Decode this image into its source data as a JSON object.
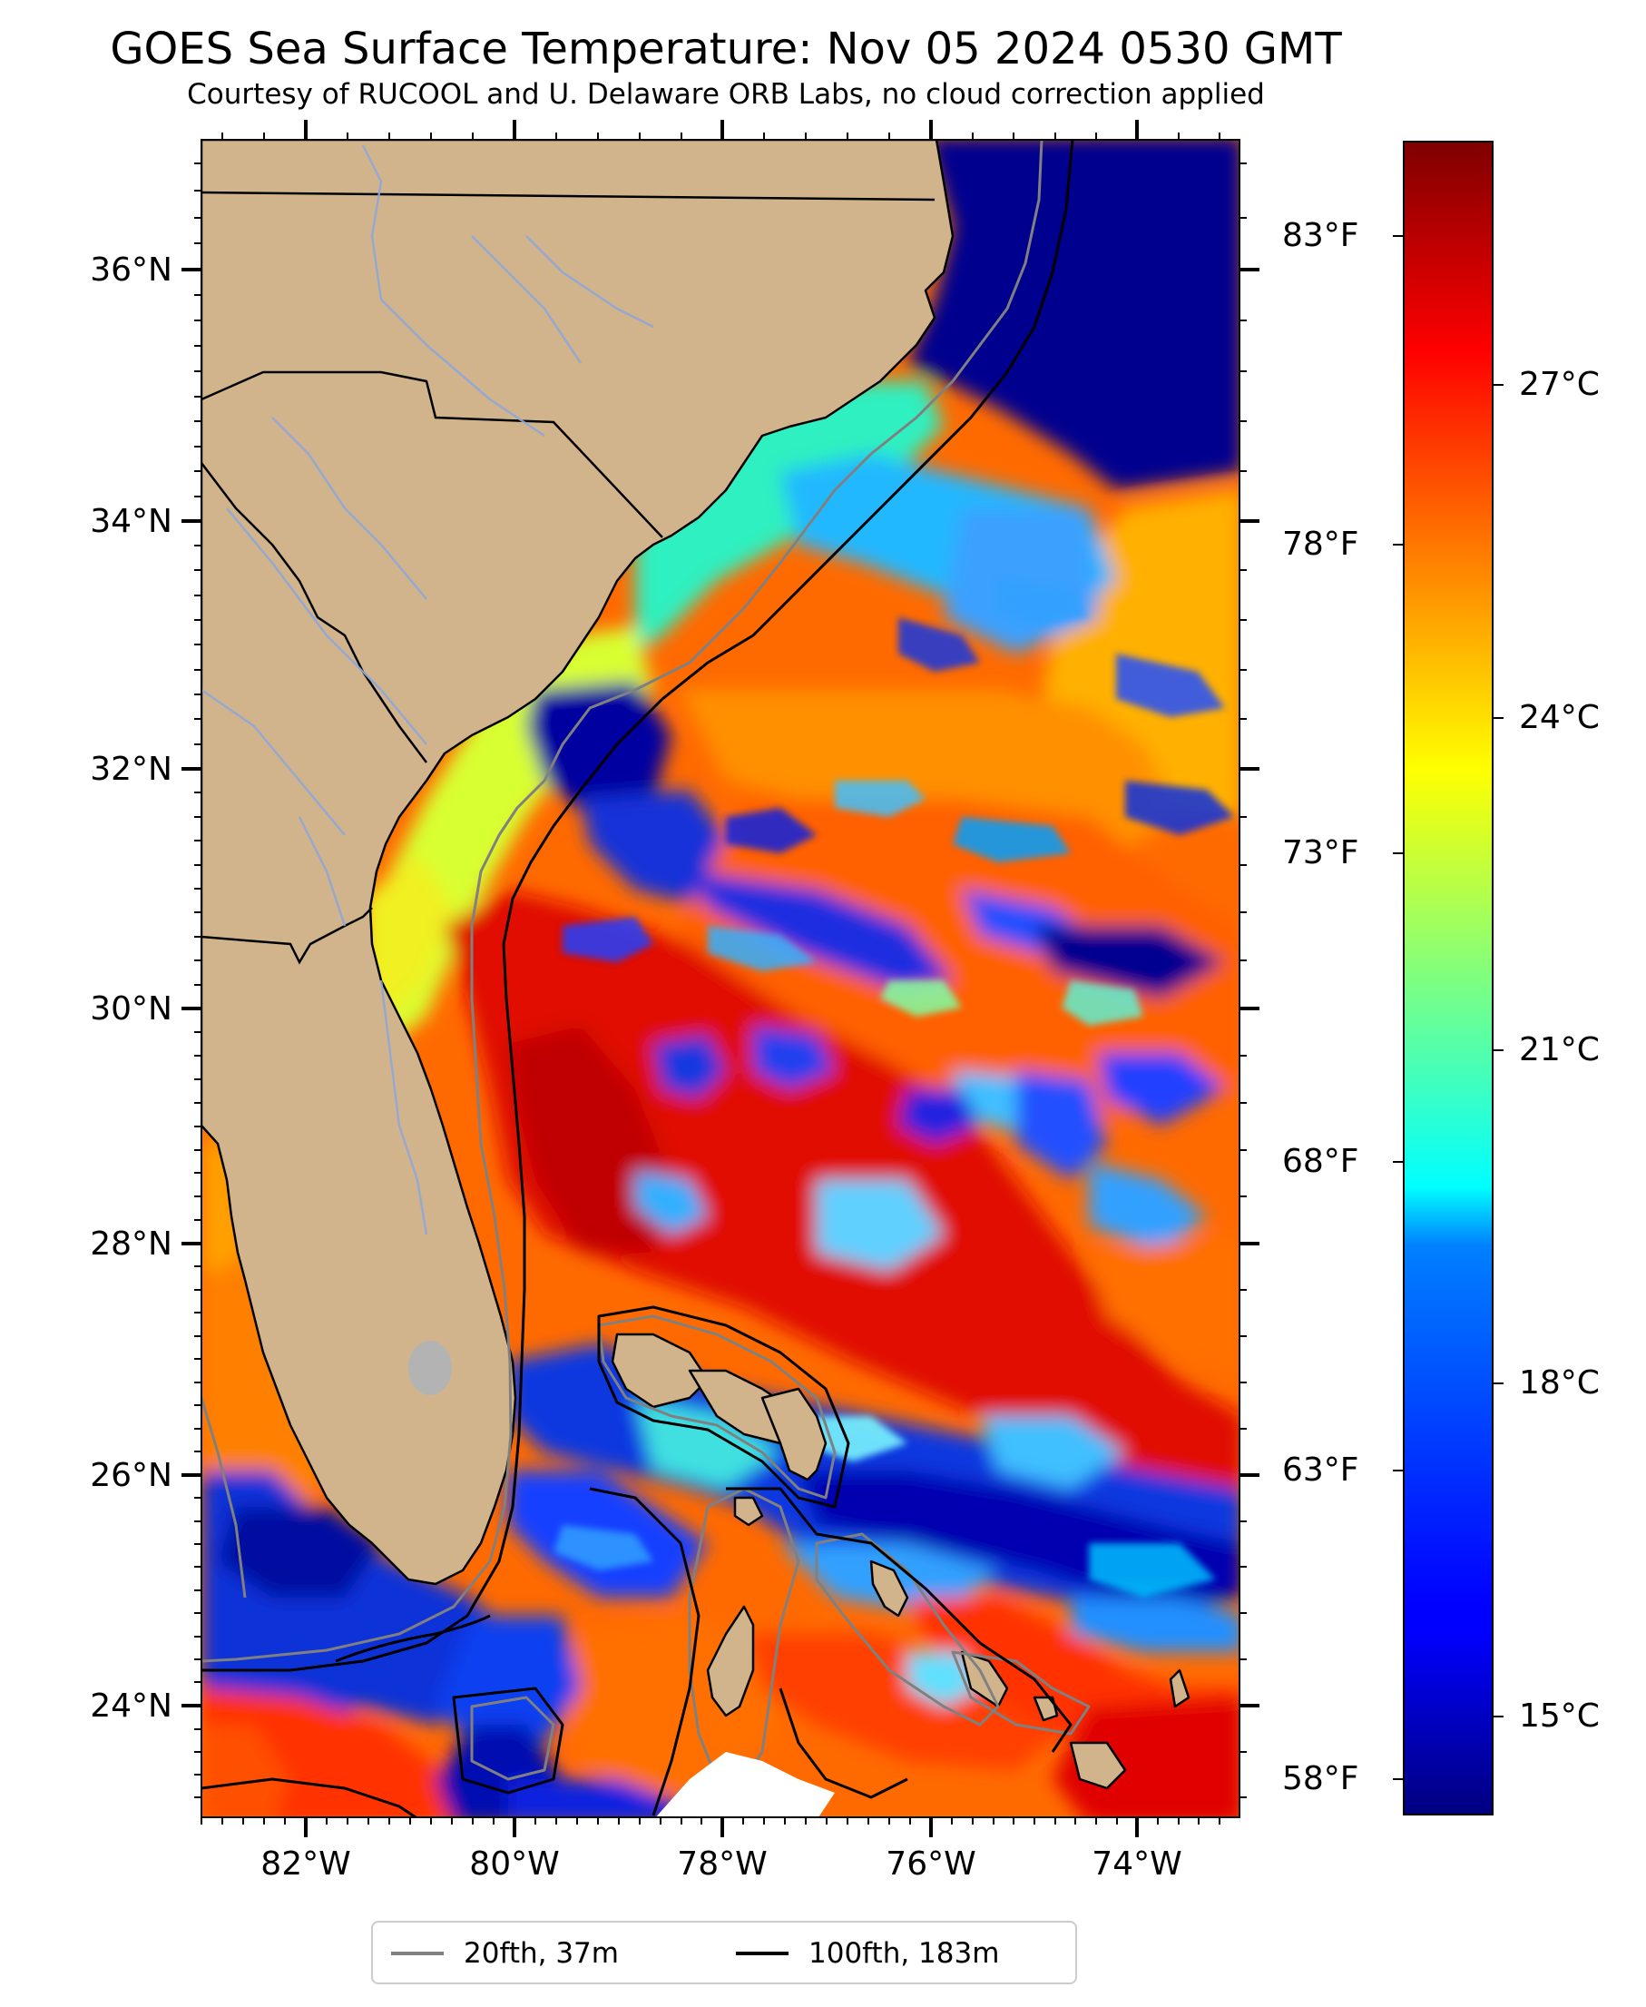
{
  "title": "GOES Sea Surface Temperature: Nov 05 2024 0530 GMT",
  "subtitle": "Courtesy of RUCOOL and U. Delaware ORB Labs, no cloud correction applied",
  "lat_labels": [
    "36°N",
    "34°N",
    "32°N",
    "30°N",
    "28°N",
    "26°N",
    "24°N"
  ],
  "lon_labels": [
    "82°W",
    "80°W",
    "78°W",
    "76°W",
    "74°W"
  ],
  "fahrenheit_labels": [
    "83°F",
    "78°F",
    "73°F",
    "68°F",
    "63°F",
    "58°F"
  ],
  "celsius_labels": [
    "27°C",
    "24°C",
    "21°C",
    "18°C",
    "15°C"
  ],
  "legend": {
    "contour_20": "20fth, 37m",
    "contour_100": "100fth, 183m"
  },
  "colors": {
    "land": "#d2b48c",
    "contour_20": "#808080",
    "contour_100": "#000000",
    "rivers": "#8ea7d8",
    "lake": "#b3b3b3"
  },
  "colorbar": {
    "colormap": "jet",
    "celsius_range_approx": [
      13.5,
      29.5
    ]
  }
}
